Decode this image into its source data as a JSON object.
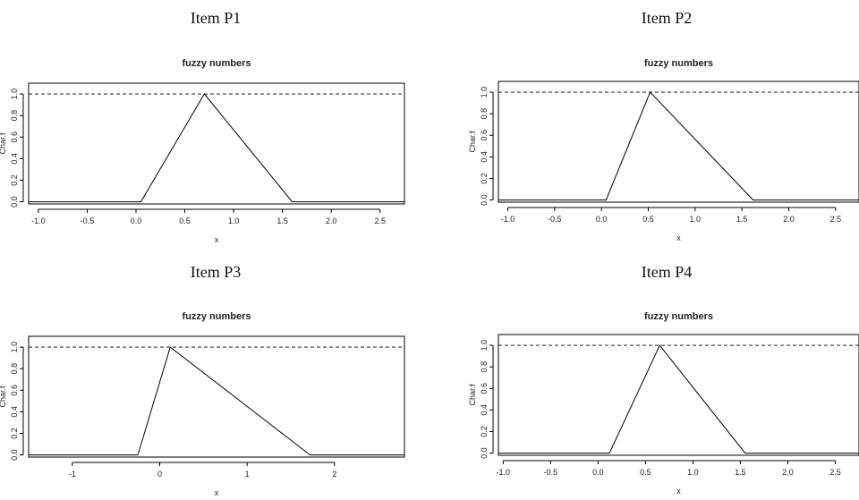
{
  "chart_data": [
    {
      "type": "line",
      "heading": "Item P1",
      "title": "fuzzy numbers",
      "xlabel": "x",
      "ylabel": "Char.f",
      "xlim": [
        -1.1,
        2.75
      ],
      "ylim": [
        -0.02,
        1.1
      ],
      "xticks": [
        "-1.0",
        "-0.5",
        "0.0",
        "0.5",
        "1.0",
        "1.5",
        "2.0",
        "2.5"
      ],
      "xtick_values": [
        -1.0,
        -0.5,
        0.0,
        0.5,
        1.0,
        1.5,
        2.0,
        2.5
      ],
      "yticks": [
        "0.0",
        "0.2",
        "0.4",
        "0.6",
        "0.8",
        "1.0"
      ],
      "ytick_values": [
        0.0,
        0.2,
        0.4,
        0.6,
        0.8,
        1.0
      ],
      "reference_line_y": 1.0,
      "series": [
        {
          "x": [
            -1.1,
            0.05,
            0.7,
            1.6,
            2.75
          ],
          "y": [
            0,
            0,
            1,
            0,
            0
          ]
        }
      ]
    },
    {
      "type": "line",
      "heading": "Item P2",
      "title": "fuzzy numbers",
      "xlabel": "x",
      "ylabel": "Char.f",
      "xlim": [
        -1.1,
        2.75
      ],
      "ylim": [
        -0.02,
        1.1
      ],
      "xticks": [
        "-1.0",
        "-0.5",
        "0.0",
        "0.5",
        "1.0",
        "1.5",
        "2.0",
        "2.5"
      ],
      "xtick_values": [
        -1.0,
        -0.5,
        0.0,
        0.5,
        1.0,
        1.5,
        2.0,
        2.5
      ],
      "yticks": [
        "0.0",
        "0.2",
        "0.4",
        "0.6",
        "0.8",
        "1.0"
      ],
      "ytick_values": [
        0.0,
        0.2,
        0.4,
        0.6,
        0.8,
        1.0
      ],
      "reference_line_y": 1.0,
      "series": [
        {
          "x": [
            -1.1,
            0.05,
            0.52,
            1.62,
            2.75
          ],
          "y": [
            0,
            0,
            1,
            0,
            0
          ]
        }
      ]
    },
    {
      "type": "line",
      "heading": "Item P3",
      "title": "fuzzy numbers",
      "xlabel": "x",
      "ylabel": "Char.f",
      "xlim": [
        -1.5,
        2.8
      ],
      "ylim": [
        -0.02,
        1.1
      ],
      "xticks": [
        "-1",
        "0",
        "1",
        "2"
      ],
      "xtick_values": [
        -1,
        0,
        1,
        2
      ],
      "yticks": [
        "0.0",
        "0.2",
        "0.4",
        "0.6",
        "0.8",
        "1.0"
      ],
      "ytick_values": [
        0.0,
        0.2,
        0.4,
        0.6,
        0.8,
        1.0
      ],
      "reference_line_y": 1.0,
      "series": [
        {
          "x": [
            -1.5,
            -0.25,
            0.12,
            1.72,
            2.8
          ],
          "y": [
            0,
            0,
            1,
            0,
            0
          ]
        }
      ]
    },
    {
      "type": "line",
      "heading": "Item P4",
      "title": "fuzzy numbers",
      "xlabel": "x",
      "ylabel": "Char.f",
      "xlim": [
        -1.05,
        2.75
      ],
      "ylim": [
        -0.02,
        1.1
      ],
      "xticks": [
        "-1.0",
        "-0.5",
        "0.0",
        "0.5",
        "1.0",
        "1.5",
        "2.0",
        "2.5"
      ],
      "xtick_values": [
        -1.0,
        -0.5,
        0.0,
        0.5,
        1.0,
        1.5,
        2.0,
        2.5
      ],
      "yticks": [
        "0.0",
        "0.2",
        "0.4",
        "0.6",
        "0.8",
        "1.0"
      ],
      "ytick_values": [
        0.0,
        0.2,
        0.4,
        0.6,
        0.8,
        1.0
      ],
      "reference_line_y": 1.0,
      "series": [
        {
          "x": [
            -1.05,
            0.12,
            0.65,
            1.55,
            2.75
          ],
          "y": [
            0,
            0,
            1,
            0,
            0
          ]
        }
      ]
    }
  ]
}
